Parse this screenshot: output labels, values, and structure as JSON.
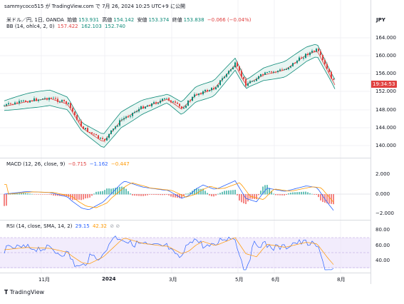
{
  "header": {
    "text": "sammycoco515 が TradingView.com で 7月 26, 2024 10:25 UTC+9 に公開"
  },
  "legend": {
    "symbol": "米ドル／円, 1日, OANDA",
    "open_label": "始値",
    "open": "153.931",
    "high_label": "高値",
    "high": "154.142",
    "low_label": "安値",
    "low": "153.374",
    "close_label": "終値",
    "close": "153.838",
    "change": "−0.066 (−0.04%)"
  },
  "bb": {
    "label": "BB (14, ohlc4, 2, 0)",
    "v1": "157.422",
    "v2": "162.103",
    "v3": "152.740"
  },
  "macd": {
    "label": "MACD (12, 26, close, 9)",
    "v1": "−0.715",
    "v2": "−1.162",
    "v3": "−0.447"
  },
  "rsi": {
    "label": "RSI (14, close, SMA, 14, 2)",
    "v1": "29.15",
    "v2": "42.32"
  },
  "axis": {
    "currency": "JPY",
    "price_ticks": [
      "164.000",
      "160.000",
      "156.000",
      "152.000",
      "148.000",
      "144.000",
      "140.000"
    ],
    "macd_ticks": [
      "2.000",
      "0.000",
      "−2.000"
    ],
    "rsi_ticks": [
      "80.00",
      "60.00",
      "40.00"
    ],
    "time_ticks": [
      "11月",
      "2024",
      "3月",
      "5月",
      "6月",
      "8月"
    ],
    "price_tag": "19:34:53"
  },
  "footer": {
    "brand": "TradingView"
  },
  "colors": {
    "up": "#0c8a78",
    "down": "#e0403f",
    "bb_band": "#0c8a78",
    "bb_fill": "#e8f5f2",
    "basis": "#e0403f",
    "macd": "#2962ff",
    "signal": "#ff9800",
    "rsi": "#2962ff",
    "rsi_sma": "#ff9800",
    "rsi_bg": "#ede4fb"
  }
}
